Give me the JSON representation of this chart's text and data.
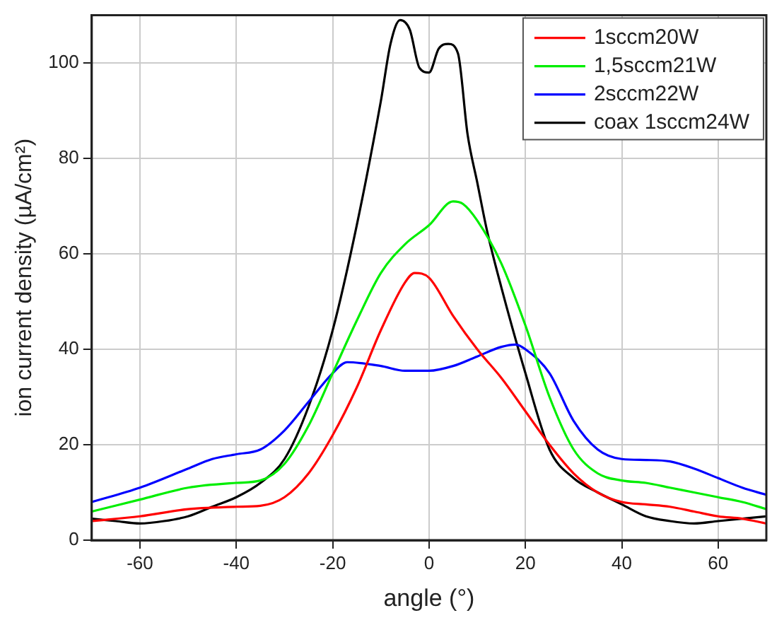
{
  "chart_data": {
    "type": "line",
    "xlabel": "angle (°)",
    "ylabel": "ion current density (µA/cm²)",
    "xlim": [
      -70,
      70
    ],
    "xticks": [
      -60,
      -40,
      -20,
      0,
      20,
      40,
      60
    ],
    "ylim": [
      0,
      110
    ],
    "yticks": [
      0,
      20,
      40,
      60,
      80,
      100
    ],
    "grid": true,
    "legend": "top right",
    "marker": "none",
    "line_style": "solid",
    "series": [
      {
        "name": "1sccm20W",
        "color": "#ff0000",
        "x": [
          -70,
          -60,
          -50,
          -40,
          -35,
          -30,
          -25,
          -20,
          -15,
          -10,
          -5,
          -3,
          0,
          5,
          10,
          15,
          20,
          25,
          30,
          35,
          40,
          45,
          50,
          55,
          60,
          65,
          70
        ],
        "values": [
          4,
          5,
          6.5,
          7,
          7.2,
          9,
          14,
          22,
          32,
          44,
          54,
          56,
          55,
          47,
          40,
          34,
          27,
          20,
          14,
          10,
          8,
          7.5,
          7,
          6,
          5,
          4.5,
          3.5
        ]
      },
      {
        "name": "1,5sccm21W",
        "color": "#00ee00",
        "x": [
          -70,
          -60,
          -50,
          -40,
          -35,
          -30,
          -25,
          -20,
          -15,
          -10,
          -5,
          0,
          5,
          7,
          10,
          15,
          20,
          25,
          30,
          35,
          40,
          45,
          50,
          55,
          60,
          65,
          70
        ],
        "values": [
          6,
          8.5,
          11,
          12,
          12.5,
          16,
          24,
          35,
          46,
          56,
          62,
          66,
          71,
          70.5,
          67,
          58,
          45,
          30,
          19,
          14,
          12.5,
          12,
          11,
          10,
          9,
          8,
          6.5
        ]
      },
      {
        "name": "2sccm22W",
        "color": "#0000ff",
        "x": [
          -70,
          -60,
          -50,
          -45,
          -40,
          -35,
          -30,
          -25,
          -20,
          -17,
          -10,
          -5,
          0,
          5,
          10,
          15,
          18,
          20,
          25,
          30,
          35,
          40,
          45,
          50,
          55,
          60,
          65,
          70
        ],
        "values": [
          8,
          11,
          15,
          17,
          18,
          19,
          23,
          29,
          35,
          37.3,
          36.5,
          35.5,
          35.5,
          36.5,
          38.5,
          40.5,
          41,
          40,
          35,
          25,
          19,
          17,
          16.8,
          16.5,
          15,
          13,
          11,
          9.5
        ]
      },
      {
        "name": "coax 1sccm24W",
        "color": "#000000",
        "x": [
          -70,
          -65,
          -60,
          -55,
          -50,
          -45,
          -40,
          -35,
          -30,
          -25,
          -20,
          -15,
          -10,
          -8,
          -6,
          -4,
          -2,
          0,
          2,
          4,
          6,
          8,
          10,
          12,
          15,
          20,
          25,
          30,
          35,
          40,
          45,
          50,
          55,
          60,
          65,
          70
        ],
        "values": [
          4.5,
          4,
          3.5,
          4,
          5,
          7,
          9,
          12,
          17,
          28,
          44,
          66,
          92,
          104,
          109,
          107,
          99,
          98,
          103,
          104,
          102,
          85,
          75,
          65,
          53,
          35,
          19,
          13,
          10,
          7.5,
          5,
          4,
          3.5,
          4,
          4.5,
          5
        ]
      }
    ]
  }
}
